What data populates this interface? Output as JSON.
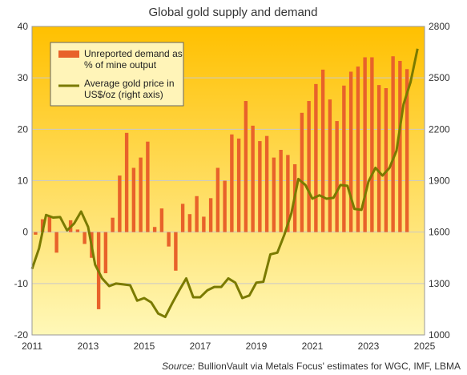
{
  "chart_data": {
    "type": "bar+line",
    "title": "Global gold supply and demand",
    "source_label": "Source:",
    "source_text": " BullionVault via Metals Focus' estimates for WGC, IMF, LBMA",
    "x_start": 2011.0,
    "x_end": 2025.0,
    "x_ticks": [
      "2011",
      "2013",
      "2015",
      "2017",
      "2019",
      "2021",
      "2023",
      "2025"
    ],
    "left_axis": {
      "range": [
        -20,
        40
      ],
      "ticks": [
        "-20",
        "-10",
        "0",
        "10",
        "20",
        "30",
        "40"
      ]
    },
    "right_axis": {
      "range": [
        1000,
        2800
      ],
      "ticks": [
        "1000",
        "1300",
        "1600",
        "1900",
        "2200",
        "2500",
        "2800"
      ]
    },
    "colors": {
      "bar": "#e8622a",
      "line": "#7a7a00",
      "bg_top": "#ffc000",
      "bg_bottom": "#fff8b8",
      "grid": "#c9c9c9",
      "legend_bg": "#fff4b8"
    },
    "series": [
      {
        "name": "Unreported demand as % of mine output",
        "axis": "left",
        "kind": "bar",
        "x": [
          2011.0,
          2011.25,
          2011.5,
          2011.75,
          2012.0,
          2012.25,
          2012.5,
          2012.75,
          2013.0,
          2013.25,
          2013.5,
          2013.75,
          2014.0,
          2014.25,
          2014.5,
          2014.75,
          2015.0,
          2015.25,
          2015.5,
          2015.75,
          2016.0,
          2016.25,
          2016.5,
          2016.75,
          2017.0,
          2017.25,
          2017.5,
          2017.75,
          2018.0,
          2018.25,
          2018.5,
          2018.75,
          2019.0,
          2019.25,
          2019.5,
          2019.75,
          2020.0,
          2020.25,
          2020.5,
          2020.75,
          2021.0,
          2021.25,
          2021.5,
          2021.75,
          2022.0,
          2022.25,
          2022.5,
          2022.75,
          2023.0,
          2023.25,
          2023.5,
          2023.75,
          2024.0,
          2024.25,
          2024.5
        ],
        "values": [
          -0.5,
          2.5,
          3.0,
          -4.0,
          0.0,
          2.3,
          0.5,
          -2.3,
          -5.0,
          -15.0,
          -8.0,
          2.8,
          11.0,
          19.3,
          12.5,
          14.5,
          17.6,
          1.0,
          4.6,
          -2.8,
          -7.5,
          5.5,
          3.5,
          7.0,
          3.0,
          6.6,
          12.5,
          10.0,
          19.0,
          18.2,
          25.5,
          20.7,
          17.7,
          18.7,
          14.5,
          16.0,
          15.0,
          13.2,
          23.2,
          25.5,
          28.8,
          31.6,
          25.8,
          21.6,
          28.5,
          31.2,
          32.2,
          34.0,
          34.0,
          28.6,
          28.0,
          34.2,
          33.3,
          31.7,
          0
        ]
      },
      {
        "name": "Average gold price in US$/oz (right axis)",
        "axis": "right",
        "kind": "line",
        "x": [
          2011.0,
          2011.25,
          2011.5,
          2011.75,
          2012.0,
          2012.25,
          2012.5,
          2012.75,
          2013.0,
          2013.25,
          2013.5,
          2013.75,
          2014.0,
          2014.25,
          2014.5,
          2014.75,
          2015.0,
          2015.25,
          2015.5,
          2015.75,
          2016.0,
          2016.25,
          2016.5,
          2016.75,
          2017.0,
          2017.25,
          2017.5,
          2017.75,
          2018.0,
          2018.25,
          2018.5,
          2018.75,
          2019.0,
          2019.25,
          2019.5,
          2019.75,
          2020.0,
          2020.25,
          2020.5,
          2020.75,
          2021.0,
          2021.25,
          2021.5,
          2021.75,
          2022.0,
          2022.25,
          2022.5,
          2022.75,
          2023.0,
          2023.25,
          2023.5,
          2023.75,
          2024.0,
          2024.25,
          2024.5,
          2024.75
        ],
        "values": [
          1385,
          1505,
          1700,
          1685,
          1688,
          1610,
          1650,
          1720,
          1630,
          1410,
          1330,
          1285,
          1300,
          1295,
          1290,
          1200,
          1215,
          1190,
          1125,
          1105,
          1185,
          1260,
          1330,
          1220,
          1220,
          1260,
          1280,
          1280,
          1330,
          1305,
          1215,
          1230,
          1305,
          1310,
          1470,
          1480,
          1585,
          1710,
          1910,
          1875,
          1795,
          1815,
          1795,
          1800,
          1875,
          1870,
          1735,
          1730,
          1895,
          1975,
          1930,
          1975,
          2075,
          2345,
          2475,
          2670
        ]
      }
    ]
  }
}
